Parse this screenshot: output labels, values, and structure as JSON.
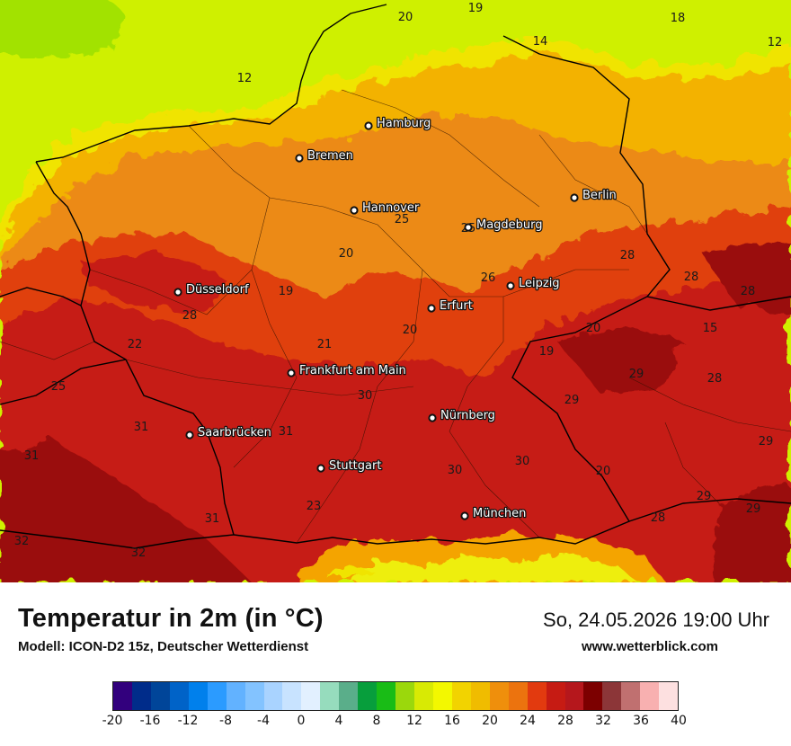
{
  "map": {
    "cities": [
      {
        "name": "Hamburg"
      },
      {
        "name": "Bremen"
      },
      {
        "name": "Berlin"
      },
      {
        "name": "Hannover"
      },
      {
        "name": "Magdeburg"
      },
      {
        "name": "Düsseldorf"
      },
      {
        "name": "Leipzig"
      },
      {
        "name": "Erfurt"
      },
      {
        "name": "Frankfurt am Main"
      },
      {
        "name": "Nürnberg"
      },
      {
        "name": "Saarbrücken"
      },
      {
        "name": "Stuttgart"
      },
      {
        "name": "München"
      }
    ],
    "temperature_labels": [
      "20",
      "19",
      "18",
      "14",
      "12",
      "12",
      "25",
      "25",
      "20",
      "28",
      "28",
      "28",
      "26",
      "19",
      "28",
      "22",
      "21",
      "20",
      "15",
      "20",
      "19",
      "29",
      "28",
      "25",
      "30",
      "29",
      "31",
      "31",
      "30",
      "30",
      "29",
      "31",
      "20",
      "29",
      "31",
      "23",
      "28",
      "29",
      "32",
      "32"
    ]
  },
  "footer": {
    "title": "Temperatur in 2m (in °C)",
    "model": "Modell: ICON-D2 15z, Deutscher Wetterdienst",
    "valid_time": "So, 24.05.2026 19:00 Uhr",
    "website": "www.wetterblick.com"
  },
  "legend": {
    "ticks": [
      "-20",
      "-16",
      "-12",
      "-8",
      "-4",
      "0",
      "4",
      "8",
      "12",
      "16",
      "20",
      "24",
      "28",
      "32",
      "36",
      "40"
    ],
    "colors": [
      "#32007d",
      "#002c8a",
      "#004599",
      "#0063c8",
      "#0080ec",
      "#2b9bff",
      "#62b2ff",
      "#83c3ff",
      "#a9d3ff",
      "#c8e3ff",
      "#e2f0ff",
      "#96dcbd",
      "#5aae8a",
      "#079e3c",
      "#19bc16",
      "#9bd80c",
      "#d8ea04",
      "#f3f800",
      "#f2d300",
      "#f0bc00",
      "#ef8f0c",
      "#ec730e",
      "#e23a0f",
      "#c61b13",
      "#b5171c",
      "#7c0000",
      "#8c3638",
      "#c07070",
      "#f8b0b0",
      "#fde0e0"
    ]
  },
  "colors": {
    "sea": "#cff000",
    "coast_band": "#f0e400",
    "north_land": "#f3b200",
    "central_land": "#ec8a18",
    "main_land": "#e0400f",
    "hot_land": "#c61b13",
    "hottest_land": "#9a0d0d",
    "alps_hot": "#f4a400",
    "alps_cold": "#eeee10"
  }
}
